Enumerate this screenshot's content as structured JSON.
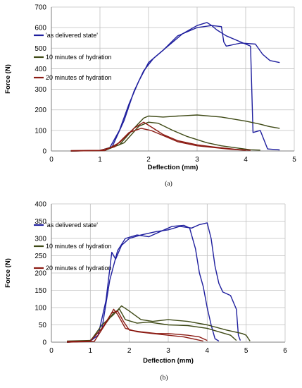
{
  "colors": {
    "as_delivered": "#1F1F9E",
    "hydration_10": "#3F4A16",
    "hydration_20": "#8B1A12",
    "grid": "#BFBFBF",
    "axis": "#7F7F7F"
  },
  "chart_data": [
    {
      "type": "line",
      "caption": "(a)",
      "xlabel": "Deflection (mm)",
      "ylabel": "Force (N)",
      "xlim": [
        0,
        5
      ],
      "ylim": [
        0,
        700
      ],
      "xticks": [
        0,
        1,
        2,
        3,
        4,
        5
      ],
      "yticks": [
        0,
        100,
        200,
        300,
        400,
        500,
        600,
        700
      ],
      "grid": true,
      "legend_position": "left",
      "series": [
        {
          "name": "'as delivered state'",
          "color_key": "as_delivered",
          "lines": [
            [
              [
                0.4,
                0
              ],
              [
                1.0,
                2
              ],
              [
                1.2,
                15
              ],
              [
                1.4,
                100
              ],
              [
                1.6,
                230
              ],
              [
                1.8,
                340
              ],
              [
                2.0,
                430
              ],
              [
                2.3,
                490
              ],
              [
                2.6,
                560
              ],
              [
                3.0,
                600
              ],
              [
                3.3,
                610
              ],
              [
                3.4,
                590
              ],
              [
                3.6,
                560
              ],
              [
                4.0,
                520
              ],
              [
                4.1,
                510
              ],
              [
                4.15,
                90
              ],
              [
                4.3,
                100
              ],
              [
                4.45,
                10
              ],
              [
                4.7,
                5
              ]
            ],
            [
              [
                0.4,
                0
              ],
              [
                1.0,
                2
              ],
              [
                1.25,
                20
              ],
              [
                1.5,
                150
              ],
              [
                1.7,
                290
              ],
              [
                1.9,
                390
              ],
              [
                2.1,
                450
              ],
              [
                2.4,
                510
              ],
              [
                2.7,
                570
              ],
              [
                3.0,
                610
              ],
              [
                3.2,
                625
              ],
              [
                3.3,
                610
              ],
              [
                3.5,
                605
              ],
              [
                3.55,
                530
              ],
              [
                3.6,
                510
              ],
              [
                3.9,
                525
              ],
              [
                4.2,
                520
              ],
              [
                4.35,
                470
              ],
              [
                4.5,
                440
              ],
              [
                4.7,
                430
              ]
            ]
          ]
        },
        {
          "name": "10 minutes of hydration",
          "color_key": "hydration_10",
          "lines": [
            [
              [
                0.4,
                0
              ],
              [
                1.0,
                2
              ],
              [
                1.4,
                30
              ],
              [
                1.7,
                110
              ],
              [
                1.9,
                160
              ],
              [
                2.0,
                170
              ],
              [
                2.3,
                165
              ],
              [
                2.6,
                170
              ],
              [
                3.0,
                175
              ],
              [
                3.5,
                165
              ],
              [
                4.0,
                145
              ],
              [
                4.3,
                130
              ],
              [
                4.5,
                118
              ],
              [
                4.7,
                110
              ]
            ],
            [
              [
                0.4,
                0
              ],
              [
                1.1,
                2
              ],
              [
                1.5,
                40
              ],
              [
                1.8,
                120
              ],
              [
                2.0,
                140
              ],
              [
                2.2,
                135
              ],
              [
                2.5,
                100
              ],
              [
                2.8,
                70
              ],
              [
                3.2,
                40
              ],
              [
                3.5,
                25
              ],
              [
                3.8,
                15
              ],
              [
                4.1,
                6
              ],
              [
                4.3,
                4
              ]
            ]
          ]
        },
        {
          "name": "20 minutes of hydration",
          "color_key": "hydration_20",
          "lines": [
            [
              [
                0.4,
                2
              ],
              [
                1.0,
                3
              ],
              [
                1.3,
                20
              ],
              [
                1.6,
                90
              ],
              [
                1.85,
                110
              ],
              [
                2.05,
                100
              ],
              [
                2.3,
                75
              ],
              [
                2.6,
                45
              ],
              [
                3.0,
                25
              ],
              [
                3.4,
                15
              ],
              [
                3.7,
                8
              ],
              [
                4.0,
                3
              ]
            ],
            [
              [
                0.4,
                0
              ],
              [
                1.1,
                2
              ],
              [
                1.4,
                40
              ],
              [
                1.7,
                110
              ],
              [
                1.9,
                140
              ],
              [
                2.1,
                110
              ],
              [
                2.3,
                80
              ],
              [
                2.6,
                50
              ],
              [
                3.0,
                30
              ],
              [
                3.4,
                18
              ],
              [
                3.8,
                8
              ],
              [
                4.1,
                3
              ]
            ]
          ]
        }
      ]
    },
    {
      "type": "line",
      "caption": "(b)",
      "xlabel": "Deflection (mm)",
      "ylabel": "Force (N)",
      "xlim": [
        0,
        6
      ],
      "ylim": [
        0,
        400
      ],
      "xticks": [
        0,
        1,
        2,
        3,
        4,
        5,
        6
      ],
      "yticks": [
        0,
        50,
        100,
        150,
        200,
        250,
        300,
        350,
        400
      ],
      "grid": true,
      "legend_position": "left",
      "series": [
        {
          "name": "'as delivered state'",
          "color_key": "as_delivered",
          "lines": [
            [
              [
                0.4,
                0
              ],
              [
                1.0,
                3
              ],
              [
                1.2,
                20
              ],
              [
                1.4,
                120
              ],
              [
                1.55,
                260
              ],
              [
                1.65,
                240
              ],
              [
                1.8,
                280
              ],
              [
                2.0,
                300
              ],
              [
                2.3,
                310
              ],
              [
                2.7,
                320
              ],
              [
                3.0,
                325
              ],
              [
                3.3,
                335
              ],
              [
                3.6,
                330
              ],
              [
                3.8,
                340
              ],
              [
                4.0,
                345
              ],
              [
                4.1,
                300
              ],
              [
                4.2,
                220
              ],
              [
                4.3,
                170
              ],
              [
                4.4,
                145
              ],
              [
                4.6,
                135
              ],
              [
                4.75,
                95
              ],
              [
                4.8,
                20
              ],
              [
                4.85,
                5
              ]
            ],
            [
              [
                0.4,
                0
              ],
              [
                1.0,
                3
              ],
              [
                1.3,
                40
              ],
              [
                1.5,
                180
              ],
              [
                1.7,
                265
              ],
              [
                1.9,
                300
              ],
              [
                2.2,
                310
              ],
              [
                2.5,
                305
              ],
              [
                2.8,
                320
              ],
              [
                3.1,
                335
              ],
              [
                3.4,
                338
              ],
              [
                3.55,
                330
              ],
              [
                3.7,
                270
              ],
              [
                3.8,
                200
              ],
              [
                3.9,
                160
              ],
              [
                4.0,
                100
              ],
              [
                4.1,
                50
              ],
              [
                4.2,
                10
              ],
              [
                4.3,
                3
              ]
            ]
          ]
        },
        {
          "name": "10 minutes of hydration",
          "color_key": "hydration_10",
          "lines": [
            [
              [
                0.4,
                0
              ],
              [
                1.0,
                3
              ],
              [
                1.3,
                50
              ],
              [
                1.6,
                80
              ],
              [
                1.8,
                105
              ],
              [
                2.0,
                90
              ],
              [
                2.3,
                65
              ],
              [
                2.6,
                60
              ],
              [
                3.0,
                65
              ],
              [
                3.5,
                60
              ],
              [
                4.0,
                50
              ],
              [
                4.5,
                35
              ],
              [
                4.9,
                25
              ],
              [
                5.0,
                20
              ],
              [
                5.1,
                3
              ]
            ],
            [
              [
                0.4,
                3
              ],
              [
                1.0,
                5
              ],
              [
                1.3,
                40
              ],
              [
                1.6,
                85
              ],
              [
                1.75,
                95
              ],
              [
                1.9,
                65
              ],
              [
                2.2,
                55
              ],
              [
                2.5,
                58
              ],
              [
                3.0,
                50
              ],
              [
                3.5,
                48
              ],
              [
                4.0,
                40
              ],
              [
                4.3,
                30
              ],
              [
                4.6,
                20
              ],
              [
                4.75,
                5
              ]
            ]
          ]
        },
        {
          "name": "20 minutes of hydration",
          "color_key": "hydration_20",
          "lines": [
            [
              [
                0.4,
                2
              ],
              [
                1.0,
                3
              ],
              [
                1.3,
                40
              ],
              [
                1.55,
                85
              ],
              [
                1.7,
                90
              ],
              [
                1.85,
                60
              ],
              [
                2.0,
                35
              ],
              [
                2.3,
                30
              ],
              [
                2.7,
                25
              ],
              [
                3.0,
                25
              ],
              [
                3.5,
                20
              ],
              [
                3.8,
                15
              ],
              [
                4.0,
                5
              ]
            ],
            [
              [
                0.4,
                0
              ],
              [
                1.1,
                2
              ],
              [
                1.4,
                55
              ],
              [
                1.6,
                95
              ],
              [
                1.7,
                80
              ],
              [
                1.9,
                40
              ],
              [
                2.2,
                30
              ],
              [
                2.6,
                25
              ],
              [
                3.0,
                20
              ],
              [
                3.4,
                15
              ],
              [
                3.7,
                8
              ],
              [
                3.9,
                3
              ]
            ]
          ]
        }
      ]
    }
  ]
}
